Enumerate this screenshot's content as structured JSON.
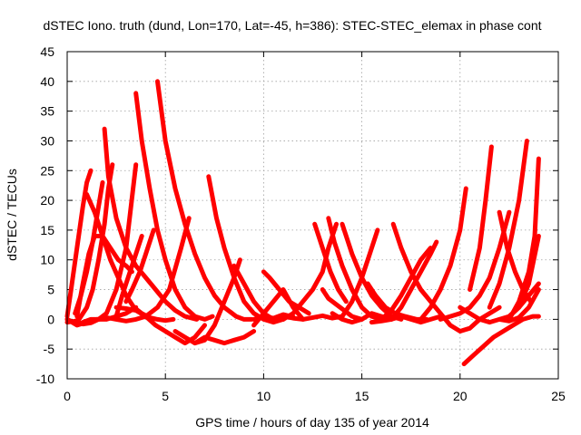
{
  "chart_data": {
    "type": "line",
    "title": "dSTEC Iono. truth (dund, Lon=170, Lat=-45, h=386): STEC-STEC_elemax in phase cont",
    "xlabel": "GPS time / hours of day 135 of year 2014",
    "ylabel": "dSTEC  / TECUs",
    "xlim": [
      0,
      25
    ],
    "ylim": [
      -10,
      45
    ],
    "xticks": [
      0,
      5,
      10,
      15,
      20,
      25
    ],
    "yticks": [
      -10,
      -5,
      0,
      5,
      10,
      15,
      20,
      25,
      30,
      35,
      40,
      45
    ],
    "grid": true,
    "series_color": "#ff0000",
    "series": [
      {
        "x": [
          0.0,
          0.2,
          0.5,
          0.8,
          1.0,
          1.2
        ],
        "y": [
          0.5,
          5,
          12,
          19,
          23,
          25
        ]
      },
      {
        "x": [
          0.8,
          1.2,
          1.6,
          2.0,
          2.5,
          3.0,
          3.5,
          4.0,
          4.6,
          5.2,
          5.8,
          6.2
        ],
        "y": [
          -0.5,
          0,
          0,
          0.3,
          0,
          -0.3,
          0,
          0.5,
          2,
          5,
          12,
          17
        ]
      },
      {
        "x": [
          1.0,
          1.4,
          1.8,
          2.2,
          2.6,
          3.0,
          3.4,
          3.8,
          4.2,
          4.6,
          5.0,
          5.4
        ],
        "y": [
          21,
          18,
          14,
          10,
          7,
          4,
          2,
          1,
          0.3,
          0,
          -0.2,
          0
        ]
      },
      {
        "x": [
          0.0,
          0.3,
          0.6,
          1.0,
          1.3,
          1.6,
          1.9,
          2.1,
          2.3
        ],
        "y": [
          0,
          -0.5,
          0,
          2,
          5,
          10,
          16,
          22,
          26
        ]
      },
      {
        "x": [
          0.4,
          0.7,
          1.0,
          1.3,
          1.6,
          1.8
        ],
        "y": [
          1,
          4,
          8,
          13,
          19,
          23
        ]
      },
      {
        "x": [
          1.9,
          2.1,
          2.5,
          3.0,
          3.5,
          4.0,
          4.5,
          5.0,
          5.5,
          6.0,
          6.6
        ],
        "y": [
          32,
          24,
          17,
          12,
          9,
          7,
          5,
          3,
          1.5,
          0.5,
          0
        ]
      },
      {
        "x": [
          0.0,
          0.4,
          0.8,
          1.2,
          1.6,
          2.0,
          2.5,
          3.0,
          3.5
        ],
        "y": [
          -0.5,
          -0.3,
          -0.8,
          -0.6,
          0,
          1,
          5,
          12,
          26
        ]
      },
      {
        "x": [
          0.0,
          0.5,
          1.0,
          1.5,
          2.0,
          2.5,
          3.0,
          3.5
        ],
        "y": [
          0,
          -1,
          -0.5,
          0,
          0,
          0.5,
          1,
          2
        ]
      },
      {
        "x": [
          2.5,
          2.8,
          3.0,
          3.3,
          3.6,
          3.8
        ],
        "y": [
          0.5,
          4,
          6,
          9,
          12,
          14
        ]
      },
      {
        "x": [
          3.5,
          3.8,
          4.2,
          4.6,
          5.0,
          5.5,
          6.0,
          6.5,
          7.0,
          7.4
        ],
        "y": [
          38,
          30,
          22,
          15,
          10,
          5,
          2,
          0.5,
          0,
          0.5
        ]
      },
      {
        "x": [
          4.6,
          5.0,
          5.5,
          6.0,
          6.5,
          7.0,
          7.5,
          8.0,
          8.6,
          9.0,
          9.4
        ],
        "y": [
          40,
          30,
          22,
          16,
          11,
          7,
          4,
          2,
          0.5,
          0,
          0
        ]
      },
      {
        "x": [
          2.5,
          3.0,
          3.5,
          4.0,
          4.5,
          5.0,
          5.5,
          6.0,
          6.5,
          7.0
        ],
        "y": [
          2,
          1.8,
          1.5,
          0.5,
          -1,
          -2,
          -3,
          -4,
          -3,
          -1
        ]
      },
      {
        "x": [
          0.5,
          0.8,
          1.1,
          1.4,
          1.8,
          2.2,
          2.6,
          3.0,
          3.3
        ],
        "y": [
          0.5,
          6,
          11,
          14,
          14,
          12,
          10,
          9,
          8
        ]
      },
      {
        "x": [
          3.0,
          3.3,
          3.7,
          4.0,
          4.4
        ],
        "y": [
          3,
          5,
          8,
          11,
          15
        ]
      },
      {
        "x": [
          5.5,
          6.0,
          6.5,
          7.0,
          7.5,
          8.0,
          8.5,
          8.8
        ],
        "y": [
          -2,
          -3,
          -4,
          -3.5,
          -1,
          3,
          7,
          10
        ]
      },
      {
        "x": [
          7.2,
          7.6,
          8.0,
          8.5,
          9.0,
          9.5,
          10.0,
          10.5,
          11.0
        ],
        "y": [
          24,
          17,
          12,
          7,
          3,
          1,
          0,
          -0.5,
          0
        ]
      },
      {
        "x": [
          6.5,
          7.0,
          7.5,
          8.0,
          8.5,
          9.0,
          9.5
        ],
        "y": [
          -4,
          -3,
          -3.5,
          -4,
          -3.5,
          -3,
          -2
        ]
      },
      {
        "x": [
          8.5,
          9.0,
          9.5,
          10.0,
          10.5,
          11.0
        ],
        "y": [
          9,
          6,
          3,
          1,
          0,
          0
        ]
      },
      {
        "x": [
          9.5,
          10.0,
          10.5,
          11.0,
          11.5,
          12.0
        ],
        "y": [
          -1,
          1,
          3,
          5,
          2,
          0
        ]
      },
      {
        "x": [
          9.5,
          10.0,
          10.5,
          11.0,
          11.5
        ],
        "y": [
          0,
          0.5,
          0.2,
          0.8,
          0.4
        ]
      },
      {
        "x": [
          10.0,
          10.3,
          10.8,
          11.3,
          11.8,
          12.3
        ],
        "y": [
          8,
          7,
          5,
          3,
          2,
          1
        ]
      },
      {
        "x": [
          11.0,
          11.5,
          12.0,
          12.5,
          13.0,
          13.3,
          13.7
        ],
        "y": [
          0,
          1,
          3,
          5,
          8,
          12,
          16
        ]
      },
      {
        "x": [
          12.6,
          13.0,
          13.4,
          13.8,
          14.2
        ],
        "y": [
          16,
          12,
          8,
          5,
          3
        ]
      },
      {
        "x": [
          11.0,
          11.5,
          12.0,
          12.5,
          13.0,
          13.5,
          14.0
        ],
        "y": [
          0.5,
          0.2,
          0,
          0.3,
          0.6,
          0.2,
          0.5
        ]
      },
      {
        "x": [
          13.0,
          13.3,
          13.7,
          14.1,
          14.5,
          15.0
        ],
        "y": [
          5,
          3.5,
          2.5,
          1.5,
          0.5,
          0
        ]
      },
      {
        "x": [
          13.3,
          13.6,
          14.0,
          14.5,
          15.0,
          15.5,
          16.0
        ],
        "y": [
          17,
          13,
          9,
          5,
          2,
          0.5,
          0
        ]
      },
      {
        "x": [
          13.5,
          14.0,
          14.5,
          15.0,
          15.5,
          16.0,
          16.5
        ],
        "y": [
          1,
          0,
          -0.5,
          0,
          1,
          0.5,
          0
        ]
      },
      {
        "x": [
          14.0,
          14.5,
          15.0,
          15.5,
          16.0,
          16.5,
          17.0
        ],
        "y": [
          16,
          11,
          7,
          4,
          2,
          0.5,
          0
        ]
      },
      {
        "x": [
          14.0,
          14.5,
          15.0,
          15.4,
          15.8
        ],
        "y": [
          0.5,
          3,
          7,
          11,
          15
        ]
      },
      {
        "x": [
          15.3,
          15.7,
          16.2,
          16.7,
          17.2,
          17.8,
          18.3
        ],
        "y": [
          6,
          4,
          2,
          1,
          0.5,
          0,
          0
        ]
      },
      {
        "x": [
          16.6,
          17.0,
          17.5,
          18.0,
          18.5,
          19.0
        ],
        "y": [
          16,
          12,
          8,
          5,
          3,
          1
        ]
      },
      {
        "x": [
          15.5,
          16.0,
          16.5,
          17.0,
          17.5,
          18.0,
          18.5,
          19.0
        ],
        "y": [
          -0.5,
          -0.3,
          0,
          0.5,
          0,
          -0.5,
          0,
          0.5
        ]
      },
      {
        "x": [
          16.5,
          17.0,
          17.5,
          18.0,
          18.5,
          18.8
        ],
        "y": [
          0,
          2,
          5,
          8,
          11,
          13
        ]
      },
      {
        "x": [
          16.0,
          16.5,
          17.0,
          17.5,
          18.0,
          18.5
        ],
        "y": [
          0,
          1.5,
          4,
          7,
          10,
          12
        ]
      },
      {
        "x": [
          18.0,
          18.5,
          19.0,
          19.5,
          20.0,
          20.3
        ],
        "y": [
          0,
          2,
          5,
          9,
          15,
          22
        ]
      },
      {
        "x": [
          19.0,
          19.5,
          20.0,
          20.5,
          21.0,
          21.5,
          22.0
        ],
        "y": [
          1,
          -1,
          -2,
          -1.5,
          0,
          1,
          2
        ]
      },
      {
        "x": [
          19.0,
          19.5,
          20.0,
          20.5,
          21.0,
          21.5,
          22.0,
          22.5
        ],
        "y": [
          0,
          0.5,
          1,
          2,
          4,
          7,
          12,
          18
        ]
      },
      {
        "x": [
          20.2,
          20.7,
          21.2,
          21.7,
          22.2,
          22.7,
          23.2,
          23.7,
          24.0
        ],
        "y": [
          -7.5,
          -6,
          -4.5,
          -3,
          -2,
          -1,
          0,
          0.5,
          0.5
        ]
      },
      {
        "x": [
          20.0,
          20.5,
          21.0,
          21.5,
          22.0,
          22.5,
          23.0,
          23.5,
          24.0
        ],
        "y": [
          2,
          1,
          0,
          -0.5,
          0,
          0.5,
          2,
          4,
          6
        ]
      },
      {
        "x": [
          20.5,
          21.0,
          21.3,
          21.6
        ],
        "y": [
          5,
          12,
          20,
          29
        ]
      },
      {
        "x": [
          21.5,
          22.0,
          22.5,
          23.0,
          23.4
        ],
        "y": [
          2,
          6,
          12,
          20,
          30
        ]
      },
      {
        "x": [
          22.0,
          22.4,
          22.8,
          23.2,
          23.6
        ],
        "y": [
          18,
          12,
          8,
          5,
          3
        ]
      },
      {
        "x": [
          22.5,
          23.0,
          23.5,
          23.8,
          24.0
        ],
        "y": [
          0,
          3,
          8,
          14,
          27
        ]
      },
      {
        "x": [
          22.0,
          22.5,
          23.0,
          23.5,
          24.0
        ],
        "y": [
          0,
          -0.3,
          0.3,
          2,
          5
        ]
      },
      {
        "x": [
          22.5,
          23.0,
          23.5,
          24.0
        ],
        "y": [
          0.5,
          2,
          6,
          14
        ]
      }
    ]
  }
}
